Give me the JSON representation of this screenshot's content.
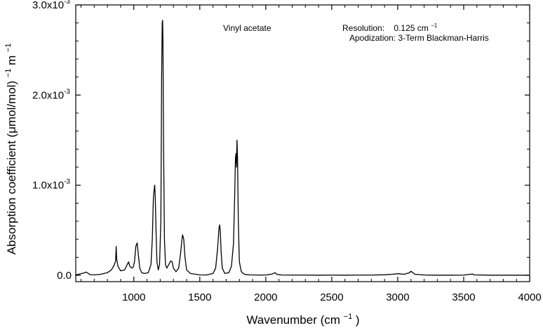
{
  "chart_data": {
    "type": "line",
    "title": "Vinyl acetate",
    "annotations": {
      "resolution_label": "Resolution:",
      "resolution_value": "0.125 cm",
      "resolution_sup": "−1",
      "apodization": "Apodization: 3-Term Blackman-Harris"
    },
    "xlabel": {
      "text": "Wavenumber (cm",
      "sup": "−1",
      "tail": ")"
    },
    "ylabel": {
      "text": "Absorption coefficient (μmol/mol)",
      "sup1": "−1",
      "mid": " m",
      "sup2": "−1"
    },
    "xlim": [
      560,
      4000
    ],
    "ylim": [
      -7e-05,
      0.003
    ],
    "x_ticks": [
      {
        "value": 1000,
        "label": "1000"
      },
      {
        "value": 1500,
        "label": "1500"
      },
      {
        "value": 2000,
        "label": "2000"
      },
      {
        "value": 2500,
        "label": "2500"
      },
      {
        "value": 3000,
        "label": "3000"
      },
      {
        "value": 3500,
        "label": "3500"
      },
      {
        "value": 4000,
        "label": "4000"
      }
    ],
    "y_ticks": [
      {
        "value": 0,
        "label": "0.0",
        "exp": ""
      },
      {
        "value": 0.001,
        "label": "1.0x10",
        "exp": "-3"
      },
      {
        "value": 0.002,
        "label": "2.0x10",
        "exp": "-3"
      },
      {
        "value": 0.003,
        "label": "3.0x10",
        "exp": "-3"
      }
    ],
    "grid": false,
    "series": [
      {
        "color": "#000000",
        "points": [
          [
            560,
            5e-06
          ],
          [
            580,
            1.2e-05
          ],
          [
            600,
            1.8e-05
          ],
          [
            620,
            2.6e-05
          ],
          [
            640,
            3.6e-05
          ],
          [
            655,
            2e-05
          ],
          [
            670,
            8e-06
          ],
          [
            700,
            5e-06
          ],
          [
            750,
            1.2e-05
          ],
          [
            800,
            3e-05
          ],
          [
            830,
            6e-05
          ],
          [
            850,
            0.00011
          ],
          [
            862,
            0.00016
          ],
          [
            866,
            0.00032
          ],
          [
            870,
            0.00018
          ],
          [
            880,
            0.0001
          ],
          [
            900,
            5e-05
          ],
          [
            930,
            6e-05
          ],
          [
            950,
            0.00012
          ],
          [
            960,
            0.00015
          ],
          [
            970,
            0.0001
          ],
          [
            985,
            8e-05
          ],
          [
            995,
            9e-05
          ],
          [
            1005,
            0.00015
          ],
          [
            1015,
            0.00032
          ],
          [
            1025,
            0.00036
          ],
          [
            1035,
            0.00022
          ],
          [
            1045,
            8e-05
          ],
          [
            1060,
            3e-05
          ],
          [
            1080,
            2e-05
          ],
          [
            1110,
            3e-05
          ],
          [
            1130,
            0.00012
          ],
          [
            1140,
            0.0004
          ],
          [
            1148,
            0.00085
          ],
          [
            1154,
            0.00095
          ],
          [
            1158,
            0.001
          ],
          [
            1162,
            0.0009
          ],
          [
            1168,
            0.0005
          ],
          [
            1175,
            0.00015
          ],
          [
            1185,
            6e-05
          ],
          [
            1195,
            0.00012
          ],
          [
            1205,
            0.0006
          ],
          [
            1211,
            0.0022
          ],
          [
            1215,
            0.0028
          ],
          [
            1218,
            0.00283
          ],
          [
            1221,
            0.0026
          ],
          [
            1225,
            0.0015
          ],
          [
            1232,
            0.0004
          ],
          [
            1240,
            0.00012
          ],
          [
            1250,
            8e-05
          ],
          [
            1265,
            0.00012
          ],
          [
            1280,
            0.00016
          ],
          [
            1290,
            0.00015
          ],
          [
            1300,
            8e-05
          ],
          [
            1320,
            4e-05
          ],
          [
            1340,
            8e-05
          ],
          [
            1355,
            0.00025
          ],
          [
            1365,
            0.0004
          ],
          [
            1370,
            0.00045
          ],
          [
            1378,
            0.0004
          ],
          [
            1388,
            0.0002
          ],
          [
            1400,
            6e-05
          ],
          [
            1430,
            2e-05
          ],
          [
            1500,
            5e-06
          ],
          [
            1550,
            4e-06
          ],
          [
            1600,
            2e-05
          ],
          [
            1620,
            8e-05
          ],
          [
            1635,
            0.0003
          ],
          [
            1645,
            0.00052
          ],
          [
            1650,
            0.00056
          ],
          [
            1655,
            0.0005
          ],
          [
            1662,
            0.00025
          ],
          [
            1670,
            8e-05
          ],
          [
            1690,
            2e-05
          ],
          [
            1720,
            3e-05
          ],
          [
            1740,
            0.0001
          ],
          [
            1755,
            0.00035
          ],
          [
            1765,
            0.0009
          ],
          [
            1770,
            0.0013
          ],
          [
            1774,
            0.00135
          ],
          [
            1778,
            0.0012
          ],
          [
            1782,
            0.0015
          ],
          [
            1786,
            0.0013
          ],
          [
            1792,
            0.0006
          ],
          [
            1800,
            0.00015
          ],
          [
            1815,
            4e-05
          ],
          [
            1840,
            1e-05
          ],
          [
            1880,
            5e-06
          ],
          [
            1950,
            3e-06
          ],
          [
            2000,
            4e-06
          ],
          [
            2050,
            1.5e-05
          ],
          [
            2070,
            3e-05
          ],
          [
            2085,
            1e-05
          ],
          [
            2120,
            4e-06
          ],
          [
            2200,
            3e-06
          ],
          [
            2300,
            3e-06
          ],
          [
            2400,
            2e-06
          ],
          [
            2500,
            3e-06
          ],
          [
            2600,
            2e-06
          ],
          [
            2700,
            3e-06
          ],
          [
            2800,
            3e-06
          ],
          [
            2900,
            6e-06
          ],
          [
            2960,
            1.2e-05
          ],
          [
            3000,
            1.8e-05
          ],
          [
            3050,
            1.2e-05
          ],
          [
            3090,
            3e-05
          ],
          [
            3100,
            4.5e-05
          ],
          [
            3110,
            3.5e-05
          ],
          [
            3130,
            1.2e-05
          ],
          [
            3200,
            4e-06
          ],
          [
            3300,
            2e-06
          ],
          [
            3400,
            2e-06
          ],
          [
            3500,
            3e-06
          ],
          [
            3550,
            1.2e-05
          ],
          [
            3565,
            1.5e-05
          ],
          [
            3580,
            5e-06
          ],
          [
            3700,
            2e-06
          ],
          [
            3800,
            2e-06
          ],
          [
            3900,
            2e-06
          ],
          [
            4000,
            2e-06
          ]
        ]
      }
    ]
  }
}
